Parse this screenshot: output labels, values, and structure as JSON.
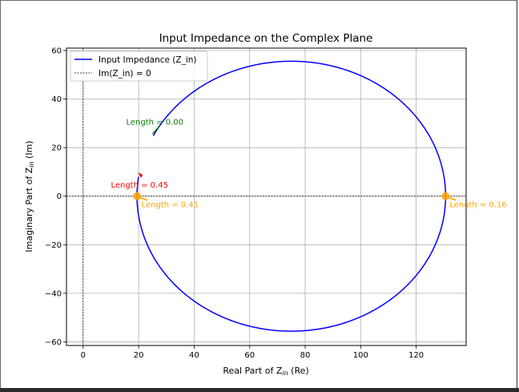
{
  "chart_data": {
    "type": "line",
    "title": "Input Impedance on the Complex Plane",
    "xlabel": "Real Part of Z",
    "xlabel_sub": "in",
    "xlabel_suffix": " (Re)",
    "ylabel": "Imaginary Part of Z",
    "ylabel_sub": "in",
    "ylabel_suffix": " (Im)",
    "xlim": [
      -6,
      138
    ],
    "ylim": [
      -61.5,
      61
    ],
    "xticks": [
      0,
      20,
      40,
      60,
      80,
      100,
      120
    ],
    "yticks": [
      -60,
      -40,
      -20,
      0,
      20,
      40,
      60
    ],
    "xtick_labels": [
      "0",
      "20",
      "40",
      "60",
      "80",
      "100",
      "120"
    ],
    "ytick_labels": [
      "−60",
      "−40",
      "−20",
      "0",
      "20",
      "40",
      "60"
    ],
    "grid": true,
    "legend_position": "top-left",
    "legend": [
      {
        "label": "Input Impedance (Z_in)",
        "style": "solid",
        "color": "#0000ff"
      },
      {
        "label": "Im(Z_in) = 0",
        "style": "dashed",
        "color": "#000000"
      }
    ],
    "circle": {
      "center_re": 75,
      "center_im": 0,
      "radius": 55.6
    },
    "series": [
      {
        "name": "Input Impedance (Z_in)",
        "color": "#0000ff",
        "start_point": [
          25,
          25
        ],
        "end_point": [
          20,
          8
        ]
      }
    ],
    "zero_line": {
      "y": 0,
      "vertical_x": 0,
      "color": "#000000"
    },
    "annotations": [
      {
        "text": "Length = 0.00",
        "point": [
          25,
          25
        ],
        "text_at": [
          15.5,
          29.5
        ],
        "color": "#008000",
        "marker_color": "#008000"
      },
      {
        "text": "Length = 0.45",
        "point": [
          20,
          8.5
        ],
        "text_at": [
          10,
          3.5
        ],
        "color": "#ff0000",
        "marker_color": "#ff0000"
      },
      {
        "text": "Length = 0.41",
        "point": [
          19.4,
          0
        ],
        "text_at": [
          21,
          -4.5
        ],
        "color": "#ffa500",
        "marker_color": "#ffa500"
      },
      {
        "text": "Length = 0.16",
        "point": [
          130.6,
          0
        ],
        "text_at": [
          132,
          -4.5
        ],
        "color": "#ffa500",
        "marker_color": "#ffa500"
      }
    ]
  }
}
